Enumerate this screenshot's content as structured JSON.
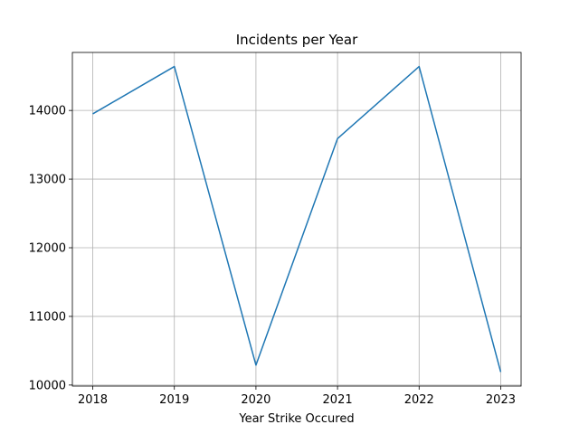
{
  "chart_data": {
    "type": "line",
    "title": "Incidents per Year",
    "xlabel": "Year Strike Occured",
    "ylabel": "",
    "x": [
      2018,
      2019,
      2020,
      2021,
      2022,
      2023
    ],
    "series": [
      {
        "values": [
          13950,
          14640,
          10290,
          13590,
          14640,
          10190
        ]
      }
    ],
    "xlim": [
      2017.75,
      2023.25
    ],
    "ylim": [
      9985,
      14845
    ],
    "xticks": [
      2018,
      2019,
      2020,
      2021,
      2022,
      2023
    ],
    "yticks": [
      10000,
      11000,
      12000,
      13000,
      14000
    ],
    "grid": true,
    "legend": "none",
    "colors": {
      "line": "#1f77b4",
      "grid": "#b0b0b0",
      "axes": "#000000"
    }
  }
}
